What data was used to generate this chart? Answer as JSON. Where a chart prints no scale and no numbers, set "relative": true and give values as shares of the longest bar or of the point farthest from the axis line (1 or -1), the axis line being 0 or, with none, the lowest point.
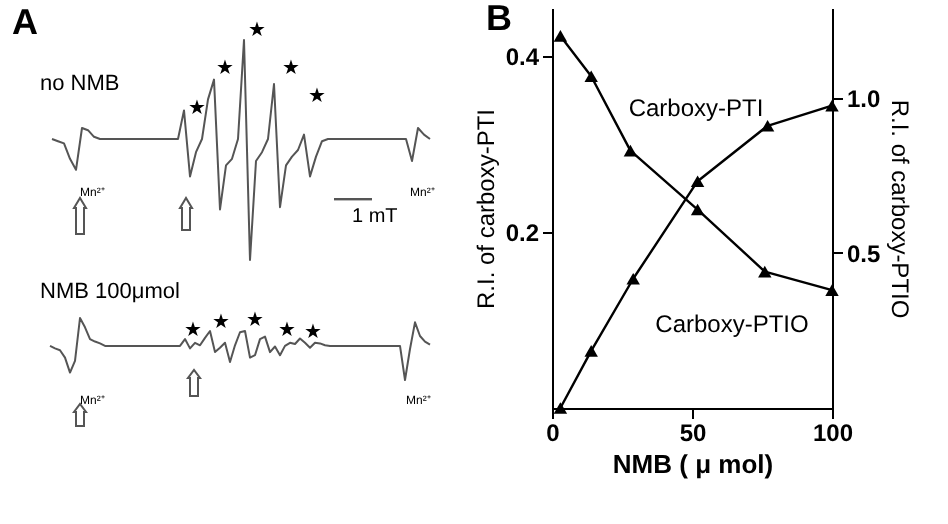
{
  "chart_data": [
    {
      "type": "line",
      "title": "A",
      "relative": true,
      "categories": [
        null,
        null,
        null,
        null,
        null,
        null,
        null,
        null,
        null,
        null,
        null,
        null,
        null,
        null,
        null,
        null,
        null,
        null,
        null,
        null,
        null,
        null,
        null,
        null,
        null,
        null,
        null,
        null,
        null,
        null,
        null,
        null,
        null,
        null,
        null,
        null,
        null,
        null,
        null,
        null,
        null,
        null,
        null,
        null,
        null,
        null,
        null,
        null,
        null,
        null,
        null,
        null,
        null,
        null,
        null,
        null,
        null,
        null,
        null,
        null,
        null,
        null,
        null,
        null
      ],
      "annotations": [
        "no NMB",
        "1 mT",
        "Mn²⁺",
        "Mn²⁺",
        "★",
        "★",
        "★",
        "★",
        "★"
      ],
      "series": [
        {
          "color": "#555555",
          "values": [
            0.55,
            0.54,
            0.53,
            0.46,
            0.41,
            0.6,
            0.59,
            0.56,
            0.55,
            0.55,
            0.55,
            0.55,
            0.55,
            0.55,
            0.55,
            0.55,
            0.55,
            0.55,
            0.55,
            0.55,
            0.55,
            0.55,
            0.68,
            0.38,
            0.49,
            0.55,
            0.73,
            0.82,
            0.23,
            0.43,
            0.46,
            0.55,
            1,
            0,
            0.45,
            0.49,
            0.55,
            0.8,
            0.24,
            0.43,
            0.47,
            0.5,
            0.57,
            0.38,
            0.47,
            0.54,
            0.55,
            0.55,
            0.55,
            0.55,
            0.55,
            0.55,
            0.55,
            0.55,
            0.55,
            0.55,
            0.55,
            0.55,
            0.55,
            0.55,
            0.45,
            0.6,
            0.57,
            0.55
          ]
        }
      ]
    },
    {
      "type": "line",
      "relative": true,
      "categories": [
        null,
        null,
        null,
        null,
        null,
        null,
        null,
        null,
        null,
        null,
        null,
        null,
        null,
        null,
        null,
        null,
        null,
        null,
        null,
        null,
        null,
        null,
        null,
        null,
        null,
        null,
        null,
        null,
        null,
        null,
        null,
        null,
        null,
        null,
        null,
        null,
        null,
        null,
        null,
        null,
        null,
        null,
        null,
        null,
        null,
        null,
        null,
        null,
        null,
        null,
        null,
        null,
        null,
        null,
        null,
        null,
        null,
        null,
        null,
        null,
        null,
        null,
        null,
        null,
        null,
        null,
        null,
        null,
        null,
        null,
        null,
        null,
        null,
        null,
        null,
        null,
        null
      ],
      "annotations": [
        "NMB 100μmol",
        "Mn²⁺",
        "Mn²⁺",
        "★",
        "★",
        "★",
        "★",
        "★"
      ],
      "series": [
        {
          "color": "#555555",
          "values": [
            0.55,
            0.51,
            0.48,
            0.36,
            0.12,
            0.31,
            1,
            0.85,
            0.66,
            0.62,
            0.59,
            0.55,
            0.55,
            0.55,
            0.55,
            0.55,
            0.55,
            0.55,
            0.55,
            0.55,
            0.55,
            0.55,
            0.55,
            0.55,
            0.55,
            0.55,
            0.55,
            0.66,
            0.51,
            0.6,
            0.56,
            0.68,
            0.79,
            0.45,
            0.52,
            0.6,
            0.29,
            0.56,
            0.77,
            0.79,
            0.36,
            0.4,
            0.66,
            0.7,
            0.45,
            0.54,
            0.4,
            0.55,
            0.6,
            0.58,
            0.67,
            0.6,
            0.52,
            0.6,
            0.59,
            0.56,
            0.55,
            0.55,
            0.55,
            0.55,
            0.55,
            0.55,
            0.55,
            0.55,
            0.55,
            0.55,
            0.55,
            0.55,
            0.55,
            0.55,
            0.55,
            0,
            0.5,
            0.93,
            0.71,
            0.62,
            0.57
          ]
        }
      ]
    },
    {
      "type": "line",
      "title": "B",
      "xlabel": "NMB ( μ mol)",
      "ylabel": "R.I. of carboxy-PTI",
      "y2label": "R.I. of carboxy-PTIO",
      "marker": "triangle",
      "xlim": [
        0,
        100
      ],
      "xticks": [
        0,
        50,
        100
      ],
      "ylim": [
        0,
        0.455
      ],
      "yticks": [
        0.2,
        0.4
      ],
      "y2lim": [
        0,
        1.29
      ],
      "y2ticks": [
        0.5,
        {
          "value": 1,
          "label": "1.0"
        }
      ],
      "series": [
        {
          "name": "Carboxy-PTI",
          "color": "#000000",
          "x": [
            3,
            14,
            29,
            52,
            77,
            100
          ],
          "values": [
            0,
            0.065,
            0.147,
            0.258,
            0.321,
            0.344
          ]
        },
        {
          "name": "Carboxy-PTIO",
          "color": "#000000",
          "axis": "y2",
          "x": [
            3,
            14,
            28,
            52,
            76,
            100
          ],
          "values": [
            1.2,
            1.07,
            0.83,
            0.64,
            0.44,
            0.38
          ]
        }
      ]
    }
  ]
}
